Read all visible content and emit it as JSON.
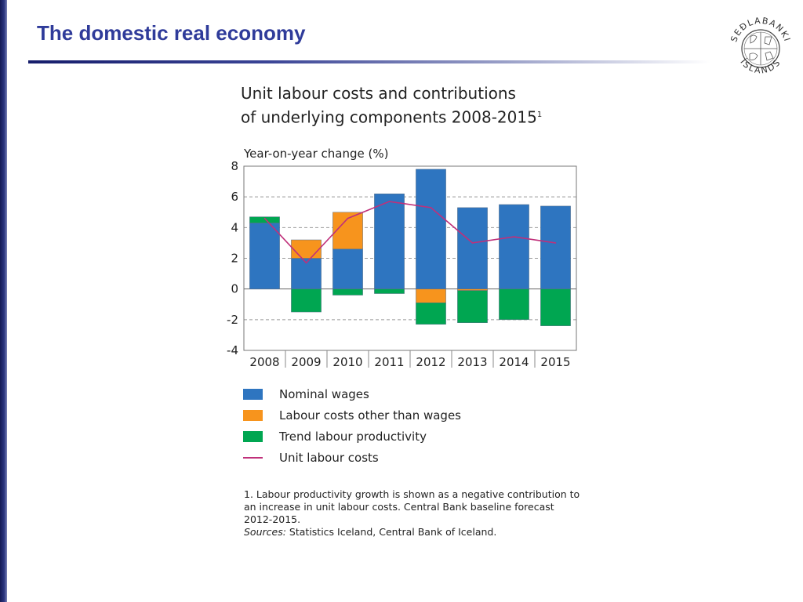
{
  "slide": {
    "title": "The domestic real economy"
  },
  "logo": {
    "top_text": "SEÐLABANKI",
    "bottom_text": "ÍSLANDS"
  },
  "chart_title": {
    "line1": "Unit labour costs and contributions",
    "line2": "of underlying components 2008-2015",
    "superscript": "1"
  },
  "chart_data": {
    "type": "bar",
    "stacked": true,
    "ylabel": "Year-on-year change (%)",
    "ylim": [
      -4,
      8
    ],
    "yticks": [
      8,
      6,
      4,
      2,
      0,
      -2,
      -4
    ],
    "grid": true,
    "categories": [
      "2008",
      "2009",
      "2010",
      "2011",
      "2012",
      "2013",
      "2014",
      "2015"
    ],
    "series": [
      {
        "name": "Nominal wages",
        "kind": "bar",
        "color": "#2e75c0",
        "values": [
          4.3,
          2.0,
          2.6,
          6.2,
          7.8,
          5.3,
          5.5,
          5.4
        ]
      },
      {
        "name": "Labour costs other than wages",
        "kind": "bar",
        "color": "#f7941d",
        "values": [
          0.0,
          1.2,
          2.4,
          0.0,
          -0.9,
          -0.1,
          0.0,
          0.0
        ]
      },
      {
        "name": "Trend labour productivity",
        "kind": "bar",
        "color": "#00a651",
        "values": [
          0.4,
          -1.5,
          -0.4,
          -0.3,
          -1.4,
          -2.1,
          -2.0,
          -2.4
        ]
      },
      {
        "name": "Unit labour costs",
        "kind": "line",
        "color": "#c0307a",
        "values": [
          4.6,
          1.7,
          4.6,
          5.7,
          5.3,
          3.0,
          3.4,
          3.0
        ]
      }
    ]
  },
  "footnote": {
    "note": "1. Labour productivity growth is shown as a negative contribution to an increase in unit labour costs. Central Bank baseline forecast 2012-2015.",
    "sources_label": "Sources:",
    "sources_text": "Statistics Iceland, Central Bank of Iceland."
  }
}
